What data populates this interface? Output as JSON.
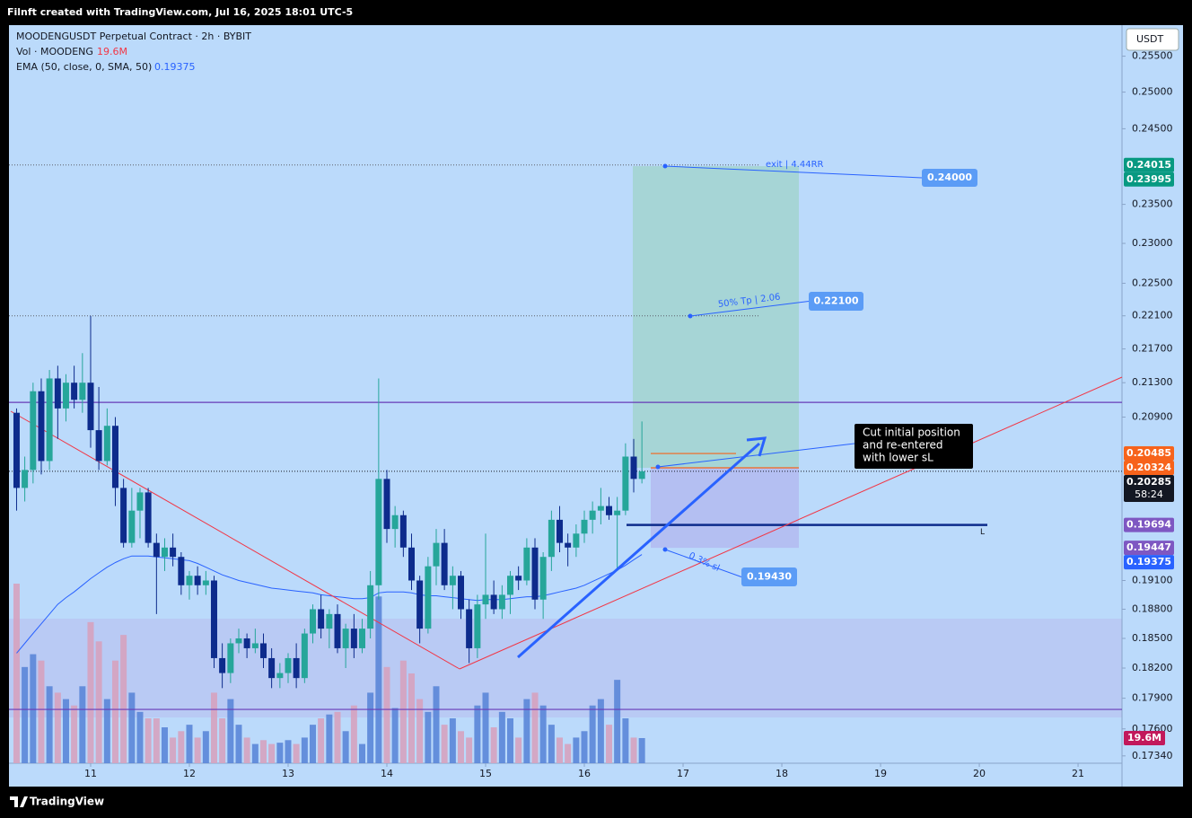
{
  "header": {
    "attribution": "Filnft created with TradingView.com, Jul 16, 2025 18:01 UTC-5",
    "symbol": "MOODENGUSDT Perpetual Contract · 2h · BYBIT",
    "vol_label": "Vol · MOODENG",
    "vol_value": {
      "value": 19.6,
      "label": "19.6M"
    },
    "ema_label": "EMA (50, close, 0, SMA, 50)",
    "ema_value": 0.19375
  },
  "currency": "USDT",
  "footer": "TradingView",
  "chart_data": {
    "type": "candlestick",
    "log_scale": true,
    "grid": false,
    "up_color": "#26a69a",
    "down_color": "#0d2b8c",
    "volume_up_color": "#5b86d8",
    "volume_down_color": "#d6a2bf",
    "x": [
      10.25,
      10.333,
      10.417,
      10.5,
      10.583,
      10.667,
      10.75,
      10.833,
      10.917,
      11,
      11.083,
      11.167,
      11.25,
      11.333,
      11.417,
      11.5,
      11.583,
      11.667,
      11.75,
      11.833,
      11.917,
      12,
      12.083,
      12.167,
      12.25,
      12.333,
      12.417,
      12.5,
      12.583,
      12.667,
      12.75,
      12.833,
      12.917,
      13,
      13.083,
      13.167,
      13.25,
      13.333,
      13.417,
      13.5,
      13.583,
      13.667,
      13.75,
      13.833,
      13.917,
      14,
      14.083,
      14.167,
      14.25,
      14.333,
      14.417,
      14.5,
      14.583,
      14.667,
      14.75,
      14.833,
      14.917,
      15,
      15.083,
      15.167,
      15.25,
      15.333,
      15.417,
      15.5,
      15.583,
      15.667,
      15.75,
      15.833,
      15.917,
      16,
      16.083,
      16.167,
      16.25,
      16.333,
      16.417,
      16.5,
      16.583
    ],
    "open": [
      0.2095,
      0.201,
      0.203,
      0.212,
      0.204,
      0.2135,
      0.21,
      0.213,
      0.211,
      0.213,
      0.2075,
      0.204,
      0.208,
      0.201,
      0.195,
      0.1985,
      0.2005,
      0.195,
      0.1935,
      0.1945,
      0.1935,
      0.1905,
      0.1915,
      0.1905,
      0.191,
      0.183,
      0.1815,
      0.1845,
      0.185,
      0.184,
      0.1845,
      0.183,
      0.181,
      0.1815,
      0.183,
      0.181,
      0.1855,
      0.188,
      0.186,
      0.1875,
      0.184,
      0.186,
      0.184,
      0.186,
      0.1905,
      0.202,
      0.1965,
      0.198,
      0.1945,
      0.191,
      0.186,
      0.1925,
      0.195,
      0.1905,
      0.1915,
      0.188,
      0.184,
      0.1885,
      0.1895,
      0.188,
      0.1895,
      0.1915,
      0.191,
      0.1945,
      0.189,
      0.1935,
      0.1975,
      0.195,
      0.1945,
      0.196,
      0.1975,
      0.1985,
      0.199,
      0.198,
      0.1985,
      0.2045,
      0.202
    ],
    "high": [
      0.21,
      0.2045,
      0.213,
      0.2135,
      0.2145,
      0.215,
      0.214,
      0.215,
      0.2165,
      0.221,
      0.2125,
      0.21,
      0.209,
      0.202,
      0.201,
      0.201,
      0.201,
      0.196,
      0.1955,
      0.196,
      0.194,
      0.192,
      0.1925,
      0.192,
      0.1915,
      0.1845,
      0.185,
      0.186,
      0.1855,
      0.186,
      0.1855,
      0.184,
      0.1825,
      0.1835,
      0.1845,
      0.186,
      0.1885,
      0.1895,
      0.188,
      0.1885,
      0.1865,
      0.1875,
      0.187,
      0.192,
      0.2135,
      0.203,
      0.199,
      0.1985,
      0.196,
      0.1915,
      0.1935,
      0.1965,
      0.1965,
      0.1925,
      0.192,
      0.189,
      0.1895,
      0.196,
      0.191,
      0.1905,
      0.192,
      0.1925,
      0.1955,
      0.1955,
      0.194,
      0.1985,
      0.199,
      0.196,
      0.197,
      0.1985,
      0.1995,
      0.201,
      0.2,
      0.2,
      0.206,
      0.2065,
      0.2085
    ],
    "low": [
      0.1985,
      0.1995,
      0.2015,
      0.2025,
      0.203,
      0.2065,
      0.2085,
      0.21,
      0.2095,
      0.2055,
      0.203,
      0.2035,
      0.199,
      0.1945,
      0.1945,
      0.1955,
      0.1945,
      0.1875,
      0.192,
      0.1925,
      0.1895,
      0.189,
      0.1895,
      0.1895,
      0.182,
      0.18,
      0.1805,
      0.1835,
      0.183,
      0.1835,
      0.182,
      0.18,
      0.18,
      0.1805,
      0.18,
      0.1805,
      0.1845,
      0.185,
      0.184,
      0.1835,
      0.182,
      0.183,
      0.1835,
      0.185,
      0.189,
      0.195,
      0.1945,
      0.1935,
      0.19,
      0.1845,
      0.1855,
      0.1905,
      0.19,
      0.188,
      0.187,
      0.1825,
      0.183,
      0.187,
      0.1875,
      0.187,
      0.1875,
      0.19,
      0.1905,
      0.188,
      0.187,
      0.192,
      0.194,
      0.1925,
      0.1935,
      0.195,
      0.196,
      0.197,
      0.1975,
      0.192,
      0.198,
      0.2005,
      0.2015
    ],
    "close": [
      0.201,
      0.203,
      0.212,
      0.204,
      0.2135,
      0.21,
      0.213,
      0.211,
      0.213,
      0.2075,
      0.204,
      0.208,
      0.201,
      0.195,
      0.1985,
      0.2005,
      0.195,
      0.1935,
      0.1945,
      0.1935,
      0.1905,
      0.1915,
      0.1905,
      0.191,
      0.183,
      0.1815,
      0.1845,
      0.185,
      0.184,
      0.1845,
      0.183,
      0.181,
      0.1815,
      0.183,
      0.181,
      0.1855,
      0.188,
      0.186,
      0.1875,
      0.184,
      0.186,
      0.184,
      0.186,
      0.1905,
      0.202,
      0.1965,
      0.198,
      0.1945,
      0.191,
      0.186,
      0.1925,
      0.195,
      0.1905,
      0.1915,
      0.188,
      0.184,
      0.1885,
      0.1895,
      0.188,
      0.1895,
      0.1915,
      0.191,
      0.1945,
      0.189,
      0.1935,
      0.1975,
      0.195,
      0.1945,
      0.196,
      0.1975,
      0.1985,
      0.199,
      0.198,
      0.1985,
      0.2045,
      0.202,
      0.20285
    ],
    "volume": [
      140,
      75,
      85,
      80,
      60,
      55,
      50,
      45,
      60,
      110,
      95,
      50,
      80,
      100,
      55,
      40,
      35,
      35,
      28,
      20,
      25,
      30,
      20,
      25,
      55,
      35,
      50,
      30,
      20,
      15,
      18,
      15,
      16,
      18,
      15,
      20,
      30,
      35,
      38,
      40,
      25,
      45,
      15,
      55,
      130,
      75,
      43,
      80,
      70,
      50,
      40,
      60,
      30,
      35,
      25,
      20,
      45,
      55,
      28,
      40,
      35,
      20,
      50,
      55,
      45,
      30,
      20,
      15,
      20,
      25,
      45,
      50,
      30,
      65,
      35,
      20,
      19.6
    ],
    "volume_label": {
      "value": 19.6,
      "label": "19.6M"
    },
    "ema": {
      "color": "#2962ff",
      "values": [
        0.1835,
        0.1845,
        0.1855,
        0.1865,
        0.1875,
        0.1885,
        0.1892,
        0.1898,
        0.1905,
        0.1912,
        0.1918,
        0.1924,
        0.1929,
        0.1933,
        0.1936,
        0.1936,
        0.1936,
        0.1935,
        0.1934,
        0.1933,
        0.1932,
        0.1931,
        0.1928,
        0.1924,
        0.192,
        0.1916,
        0.1913,
        0.191,
        0.1908,
        0.1906,
        0.1904,
        0.1902,
        0.1901,
        0.19,
        0.1899,
        0.1898,
        0.1897,
        0.1895,
        0.1894,
        0.1893,
        0.1892,
        0.1891,
        0.1891,
        0.1892,
        0.1897,
        0.1898,
        0.1898,
        0.1898,
        0.1897,
        0.1895,
        0.1894,
        0.1894,
        0.1893,
        0.1892,
        0.1891,
        0.189,
        0.1889,
        0.189,
        0.189,
        0.189,
        0.1891,
        0.1892,
        0.1893,
        0.1893,
        0.1894,
        0.1896,
        0.1898,
        0.19,
        0.1902,
        0.1905,
        0.1909,
        0.1913,
        0.1917,
        0.1921,
        0.1926,
        0.1932,
        0.19375
      ]
    },
    "xlim": [
      10.173,
      21.445
    ],
    "xticks": [
      11,
      12,
      13,
      14,
      15,
      16,
      17,
      18,
      19,
      20,
      21
    ],
    "ylim": [
      0.1727,
      0.2594
    ],
    "yticks": [
      {
        "value": 0.255,
        "label": "0.25500"
      },
      {
        "value": 0.25,
        "label": "0.25000"
      },
      {
        "value": 0.245,
        "label": "0.24500"
      },
      {
        "value": 0.235,
        "label": "0.23500"
      },
      {
        "value": 0.23,
        "label": "0.23000"
      },
      {
        "value": 0.225,
        "label": "0.22500"
      },
      {
        "value": 0.221,
        "label": "0.22100"
      },
      {
        "value": 0.217,
        "label": "0.21700"
      },
      {
        "value": 0.213,
        "label": "0.21300"
      },
      {
        "value": 0.209,
        "label": "0.20900"
      },
      {
        "value": 0.191,
        "label": "0.19100"
      },
      {
        "value": 0.188,
        "label": "0.18800"
      },
      {
        "value": 0.185,
        "label": "0.18500"
      },
      {
        "value": 0.182,
        "label": "0.18200"
      },
      {
        "value": 0.179,
        "label": "0.17900"
      },
      {
        "value": 0.176,
        "label": "0.17600"
      },
      {
        "value": 0.1734,
        "label": "0.17340"
      }
    ],
    "levels": [
      {
        "value": 0.2107,
        "color": "#673ab7",
        "style": "solid"
      },
      {
        "value": 0.1779,
        "color": "#673ab7",
        "style": "solid"
      },
      {
        "value": 0.19694,
        "color": "#0d2b8c",
        "style": "thick"
      },
      {
        "value": 0.20285,
        "color": "#131722",
        "style": "dotted"
      },
      {
        "value": 0.24015,
        "color": "#5d606b",
        "style": "dotted"
      },
      {
        "value": 0.221,
        "color": "#5d606b",
        "style": "dotted"
      },
      {
        "value": 0.20485,
        "color": "#f7631b",
        "style": "solid"
      },
      {
        "value": 0.20324,
        "color": "#f7631b",
        "style": "solid"
      }
    ],
    "level_tag": "L",
    "position": {
      "target": 0.24,
      "entry": 0.20324,
      "stop": 0.19447
    },
    "price_labels": [
      {
        "value": 0.24015,
        "color": "#089981"
      },
      {
        "value": 0.23995,
        "color": "#089981"
      },
      {
        "value": 0.20485,
        "color": "#f7631b"
      },
      {
        "value": 0.20324,
        "color": "#f7631b"
      },
      {
        "value": 0.20285,
        "color": "#131722",
        "countdown": "58:24"
      },
      {
        "value": 0.19694,
        "color": "#7e57c2"
      },
      {
        "value": 0.19447,
        "color": "#7e57c2"
      },
      {
        "value": 0.19375,
        "color": "#2962ff"
      }
    ],
    "callouts": [
      {
        "text": "exit | 4.44RR",
        "price": {
          "value": 0.24,
          "label": "0.24000"
        }
      },
      {
        "text": "50% Tp | 2.06",
        "price": {
          "value": 0.221,
          "label": "0.22100"
        }
      },
      {
        "text": "0.3% sl",
        "price": {
          "value": 0.1943,
          "label": "0.19430"
        }
      }
    ],
    "note": [
      "Cut initial position",
      "and re-entered",
      "with lower sL"
    ]
  }
}
